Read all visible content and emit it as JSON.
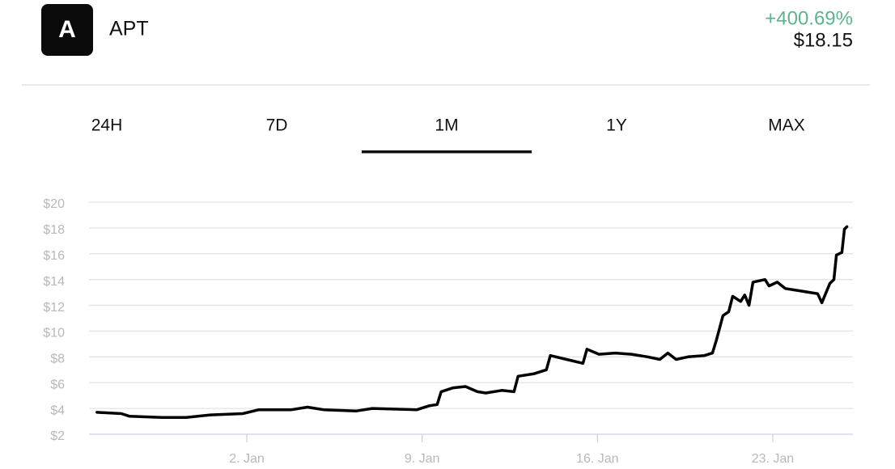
{
  "header": {
    "icon": "A",
    "symbol": "APT",
    "change": "+400.69%",
    "price": "$18.15"
  },
  "tabs": {
    "items": [
      "24H",
      "7D",
      "1M",
      "1Y",
      "MAX"
    ],
    "active": 2
  },
  "chart_data": {
    "type": "line",
    "x": [
      -3.98,
      -3.01,
      -2.69,
      -1.39,
      -0.42,
      0.55,
      1.84,
      2.48,
      3.78,
      4.42,
      5.07,
      6.36,
      7.01,
      8.79,
      9.27,
      9.6,
      9.76,
      10.24,
      10.73,
      11.21,
      11.54,
      12.18,
      12.67,
      12.83,
      13.48,
      13.96,
      14.12,
      14.77,
      15.42,
      15.58,
      16.06,
      16.71,
      17.36,
      18.0,
      18.49,
      18.81,
      19.14,
      19.62,
      20.27,
      20.59,
      20.75,
      21.01,
      21.24,
      21.4,
      21.72,
      21.88,
      22.05,
      22.21,
      22.69,
      22.85,
      23.18,
      23.5,
      24.15,
      24.47,
      24.79,
      24.96,
      25.28,
      25.44,
      25.54,
      25.76,
      25.86,
      25.96
    ],
    "values": [
      3.7,
      3.6,
      3.4,
      3.3,
      3.3,
      3.5,
      3.6,
      3.9,
      3.9,
      4.1,
      3.9,
      3.8,
      4.0,
      3.9,
      4.2,
      4.3,
      5.3,
      5.6,
      5.7,
      5.3,
      5.2,
      5.4,
      5.3,
      6.5,
      6.7,
      7.0,
      8.1,
      7.8,
      7.5,
      8.6,
      8.2,
      8.3,
      8.2,
      8.0,
      7.8,
      8.3,
      7.8,
      8.0,
      8.1,
      8.3,
      9.3,
      11.2,
      11.5,
      12.7,
      12.3,
      12.8,
      12.0,
      13.8,
      14.0,
      13.5,
      13.8,
      13.3,
      13.1,
      13.0,
      12.9,
      12.2,
      13.7,
      14.0,
      15.9,
      16.1,
      17.9,
      18.1
    ],
    "color": "#000000",
    "xlim": [
      -4.3,
      26.2
    ],
    "xticks": [
      {
        "value": 2,
        "label": "2. Jan"
      },
      {
        "value": 9,
        "label": "9. Jan"
      },
      {
        "value": 16,
        "label": "16. Jan"
      },
      {
        "value": 23,
        "label": "23. Jan"
      }
    ],
    "ylim": [
      2,
      20
    ],
    "yticks": [
      {
        "value": 2,
        "label": "$2"
      },
      {
        "value": 4,
        "label": "$4"
      },
      {
        "value": 6,
        "label": "$6"
      },
      {
        "value": 8,
        "label": "$8"
      },
      {
        "value": 10,
        "label": "$10"
      },
      {
        "value": 12,
        "label": "$12"
      },
      {
        "value": 14,
        "label": "$14"
      },
      {
        "value": 16,
        "label": "$16"
      },
      {
        "value": 18,
        "label": "$18"
      },
      {
        "value": 20,
        "label": "$20"
      }
    ],
    "grid": true
  }
}
